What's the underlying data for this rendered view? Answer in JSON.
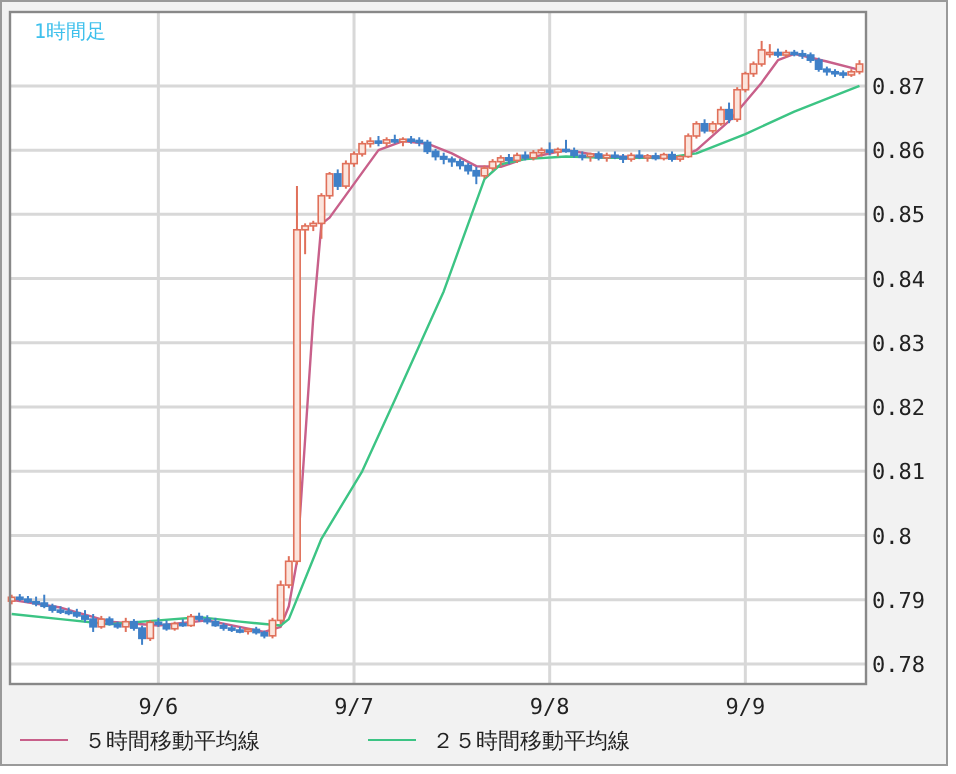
{
  "chart_data": {
    "type": "candlestick",
    "title": "1時間足",
    "x": [
      "--09-05T06:00",
      "--09-05T07:00",
      "--09-05T08:00",
      "--09-05T09:00",
      "--09-05T10:00",
      "--09-05T11:00",
      "--09-05T12:00",
      "--09-05T13:00",
      "--09-05T14:00",
      "--09-05T15:00",
      "--09-05T16:00",
      "--09-05T17:00",
      "--09-05T18:00",
      "--09-05T19:00",
      "--09-05T20:00",
      "--09-05T21:00",
      "--09-05T22:00",
      "--09-05T23:00",
      "--09-06T00:00",
      "--09-06T01:00",
      "--09-06T02:00",
      "--09-06T03:00",
      "--09-06T04:00",
      "--09-06T05:00",
      "--09-06T06:00",
      "--09-06T07:00",
      "--09-06T08:00",
      "--09-06T09:00",
      "--09-06T10:00",
      "--09-06T11:00",
      "--09-06T12:00",
      "--09-06T13:00",
      "--09-06T14:00",
      "--09-06T15:00",
      "--09-06T16:00",
      "--09-06T17:00",
      "--09-06T18:00",
      "--09-06T19:00",
      "--09-06T20:00",
      "--09-06T21:00",
      "--09-06T22:00",
      "--09-06T23:00",
      "--09-07T00:00",
      "--09-07T01:00",
      "--09-07T02:00",
      "--09-07T03:00",
      "--09-07T04:00",
      "--09-07T05:00",
      "--09-07T06:00",
      "--09-07T07:00",
      "--09-07T08:00",
      "--09-07T09:00",
      "--09-07T10:00",
      "--09-07T11:00",
      "--09-07T12:00",
      "--09-07T13:00",
      "--09-07T14:00",
      "--09-07T15:00",
      "--09-07T16:00",
      "--09-07T17:00",
      "--09-07T18:00",
      "--09-07T19:00",
      "--09-07T20:00",
      "--09-07T21:00",
      "--09-07T22:00",
      "--09-07T23:00",
      "--09-08T00:00",
      "--09-08T01:00",
      "--09-08T02:00",
      "--09-08T03:00",
      "--09-08T04:00",
      "--09-08T05:00",
      "--09-08T06:00",
      "--09-08T07:00",
      "--09-08T08:00",
      "--09-08T09:00",
      "--09-08T10:00",
      "--09-08T11:00",
      "--09-08T12:00",
      "--09-08T13:00",
      "--09-08T14:00",
      "--09-08T15:00",
      "--09-08T16:00",
      "--09-08T17:00",
      "--09-08T18:00",
      "--09-08T19:00",
      "--09-08T20:00",
      "--09-08T21:00",
      "--09-08T22:00",
      "--09-08T23:00",
      "--09-09T00:00",
      "--09-09T01:00",
      "--09-09T02:00",
      "--09-09T03:00",
      "--09-09T04:00",
      "--09-09T05:00",
      "--09-09T06:00",
      "--09-09T07:00",
      "--09-09T08:00",
      "--09-09T09:00",
      "--09-09T10:00",
      "--09-09T11:00",
      "--09-09T12:00",
      "--09-09T13:00",
      "--09-09T14:00"
    ],
    "ohlc": [
      [
        0.7898,
        0.7908,
        0.7893,
        0.7904
      ],
      [
        0.7904,
        0.7909,
        0.7898,
        0.7901
      ],
      [
        0.7901,
        0.7906,
        0.7895,
        0.7897
      ],
      [
        0.7897,
        0.7905,
        0.789,
        0.7895
      ],
      [
        0.7895,
        0.7908,
        0.7887,
        0.789
      ],
      [
        0.789,
        0.7894,
        0.788,
        0.7884
      ],
      [
        0.7884,
        0.789,
        0.7878,
        0.7882
      ],
      [
        0.7882,
        0.7888,
        0.7876,
        0.788
      ],
      [
        0.788,
        0.7886,
        0.7872,
        0.7875
      ],
      [
        0.7875,
        0.7884,
        0.7865,
        0.787
      ],
      [
        0.787,
        0.7878,
        0.785,
        0.7858
      ],
      [
        0.7858,
        0.7875,
        0.7855,
        0.787
      ],
      [
        0.787,
        0.7874,
        0.786,
        0.7862
      ],
      [
        0.7862,
        0.7866,
        0.7855,
        0.7858
      ],
      [
        0.7858,
        0.7872,
        0.785,
        0.7866
      ],
      [
        0.7866,
        0.787,
        0.7852,
        0.7856
      ],
      [
        0.7856,
        0.786,
        0.783,
        0.784
      ],
      [
        0.784,
        0.7868,
        0.7836,
        0.7865
      ],
      [
        0.7865,
        0.7872,
        0.7858,
        0.7862
      ],
      [
        0.7862,
        0.7868,
        0.7852,
        0.7855
      ],
      [
        0.7855,
        0.7866,
        0.7852,
        0.7863
      ],
      [
        0.7863,
        0.787,
        0.7858,
        0.786
      ],
      [
        0.786,
        0.7878,
        0.7858,
        0.7874
      ],
      [
        0.7874,
        0.788,
        0.7866,
        0.787
      ],
      [
        0.787,
        0.7876,
        0.7862,
        0.7866
      ],
      [
        0.7866,
        0.7872,
        0.7858,
        0.786
      ],
      [
        0.786,
        0.7864,
        0.7852,
        0.7856
      ],
      [
        0.7856,
        0.786,
        0.785,
        0.7853
      ],
      [
        0.7853,
        0.7858,
        0.7848,
        0.7851
      ],
      [
        0.7851,
        0.7856,
        0.7846,
        0.7854
      ],
      [
        0.7854,
        0.7858,
        0.7846,
        0.7849
      ],
      [
        0.7849,
        0.7852,
        0.784,
        0.7844
      ],
      [
        0.7844,
        0.7872,
        0.784,
        0.7868
      ],
      [
        0.7868,
        0.793,
        0.7862,
        0.7923
      ],
      [
        0.7923,
        0.7968,
        0.7918,
        0.796
      ],
      [
        0.796,
        0.8544,
        0.7955,
        0.8476
      ],
      [
        0.8476,
        0.8486,
        0.8438,
        0.8482
      ],
      [
        0.8482,
        0.849,
        0.8474,
        0.8486
      ],
      [
        0.8486,
        0.8533,
        0.8462,
        0.8529
      ],
      [
        0.8529,
        0.8566,
        0.8524,
        0.8563
      ],
      [
        0.8563,
        0.857,
        0.8538,
        0.8544
      ],
      [
        0.8544,
        0.8584,
        0.854,
        0.8579
      ],
      [
        0.8579,
        0.8598,
        0.8574,
        0.8594
      ],
      [
        0.8594,
        0.8614,
        0.859,
        0.861
      ],
      [
        0.861,
        0.862,
        0.8604,
        0.8614
      ],
      [
        0.8614,
        0.8622,
        0.8606,
        0.8611
      ],
      [
        0.8611,
        0.862,
        0.8605,
        0.8616
      ],
      [
        0.8616,
        0.8624,
        0.861,
        0.8613
      ],
      [
        0.8613,
        0.862,
        0.8606,
        0.8617
      ],
      [
        0.8617,
        0.8622,
        0.861,
        0.8615
      ],
      [
        0.8615,
        0.862,
        0.8606,
        0.8612
      ],
      [
        0.8612,
        0.8616,
        0.8594,
        0.8598
      ],
      [
        0.8598,
        0.8602,
        0.8584,
        0.859
      ],
      [
        0.859,
        0.8596,
        0.8578,
        0.8586
      ],
      [
        0.8586,
        0.859,
        0.8574,
        0.8582
      ],
      [
        0.8582,
        0.8586,
        0.857,
        0.8576
      ],
      [
        0.8576,
        0.858,
        0.8562,
        0.8568
      ],
      [
        0.8568,
        0.8574,
        0.8547,
        0.856
      ],
      [
        0.856,
        0.8576,
        0.8556,
        0.8572
      ],
      [
        0.8572,
        0.8586,
        0.8568,
        0.8582
      ],
      [
        0.8582,
        0.8592,
        0.8576,
        0.8588
      ],
      [
        0.8588,
        0.8594,
        0.8578,
        0.8584
      ],
      [
        0.8584,
        0.8596,
        0.858,
        0.8592
      ],
      [
        0.8592,
        0.8598,
        0.8584,
        0.8588
      ],
      [
        0.8588,
        0.86,
        0.8584,
        0.8596
      ],
      [
        0.8596,
        0.8604,
        0.859,
        0.86
      ],
      [
        0.86,
        0.8612,
        0.8592,
        0.8597
      ],
      [
        0.8597,
        0.8604,
        0.859,
        0.8601
      ],
      [
        0.8601,
        0.8616,
        0.8596,
        0.8599
      ],
      [
        0.8599,
        0.8604,
        0.8588,
        0.8592
      ],
      [
        0.8592,
        0.8598,
        0.8584,
        0.859
      ],
      [
        0.859,
        0.8596,
        0.8582,
        0.8594
      ],
      [
        0.8594,
        0.8598,
        0.8584,
        0.8588
      ],
      [
        0.8588,
        0.8596,
        0.8582,
        0.8592
      ],
      [
        0.8592,
        0.8598,
        0.8586,
        0.859
      ],
      [
        0.859,
        0.8594,
        0.858,
        0.8586
      ],
      [
        0.8586,
        0.8596,
        0.8582,
        0.8592
      ],
      [
        0.8592,
        0.86,
        0.8586,
        0.8589
      ],
      [
        0.8589,
        0.8594,
        0.8582,
        0.8591
      ],
      [
        0.8591,
        0.8596,
        0.8584,
        0.8587
      ],
      [
        0.8587,
        0.8596,
        0.8584,
        0.8593
      ],
      [
        0.8593,
        0.8598,
        0.8582,
        0.8586
      ],
      [
        0.8586,
        0.8592,
        0.8582,
        0.859
      ],
      [
        0.859,
        0.8626,
        0.8588,
        0.8622
      ],
      [
        0.8622,
        0.8645,
        0.8618,
        0.8641
      ],
      [
        0.8641,
        0.8648,
        0.8626,
        0.863
      ],
      [
        0.863,
        0.8645,
        0.8626,
        0.8641
      ],
      [
        0.8641,
        0.8668,
        0.8638,
        0.8663
      ],
      [
        0.8663,
        0.8674,
        0.8642,
        0.8648
      ],
      [
        0.8648,
        0.8698,
        0.8644,
        0.8694
      ],
      [
        0.8694,
        0.8722,
        0.869,
        0.8719
      ],
      [
        0.8719,
        0.8738,
        0.8714,
        0.8734
      ],
      [
        0.8734,
        0.877,
        0.873,
        0.8756
      ],
      [
        0.875,
        0.8765,
        0.8744,
        0.8752
      ],
      [
        0.8752,
        0.8758,
        0.8744,
        0.8748
      ],
      [
        0.8748,
        0.8756,
        0.8744,
        0.8752
      ],
      [
        0.8752,
        0.8756,
        0.8746,
        0.875
      ],
      [
        0.875,
        0.8756,
        0.8742,
        0.8748
      ],
      [
        0.8748,
        0.8752,
        0.8736,
        0.874
      ],
      [
        0.874,
        0.8744,
        0.8722,
        0.8726
      ],
      [
        0.8726,
        0.873,
        0.8716,
        0.8722
      ],
      [
        0.8722,
        0.8726,
        0.8714,
        0.872
      ],
      [
        0.872,
        0.8724,
        0.8712,
        0.8717
      ],
      [
        0.8717,
        0.8726,
        0.8714,
        0.8722
      ],
      [
        0.8722,
        0.874,
        0.8718,
        0.8734
      ]
    ],
    "series": [
      {
        "name": "５時間移動平均線",
        "type": "line",
        "color": "#c8608a",
        "x": [
          "--09-05T06:00",
          "--09-05T12:00",
          "--09-05T18:00",
          "--09-06T00:00",
          "--09-06T06:00",
          "--09-06T13:00",
          "--09-06T15:00",
          "--09-06T16:00",
          "--09-06T17:00",
          "--09-06T18:00",
          "--09-06T19:00",
          "--09-06T20:00",
          "--09-06T21:00",
          "--09-06T23:00",
          "--09-07T01:00",
          "--09-07T03:00",
          "--09-07T06:00",
          "--09-07T09:00",
          "--09-07T12:00",
          "--09-07T15:00",
          "--09-07T18:00",
          "--09-07T21:00",
          "--09-08T02:00",
          "--09-08T07:00",
          "--09-08T16:00",
          "--09-08T18:00",
          "--09-08T22:00",
          "--09-09T02:00",
          "--09-09T04:00",
          "--09-09T06:00",
          "--09-09T10:00",
          "--09-09T14:00"
        ],
        "values": [
          0.79,
          0.7888,
          0.7866,
          0.786,
          0.7868,
          0.785,
          0.7858,
          0.789,
          0.796,
          0.815,
          0.834,
          0.8485,
          0.8495,
          0.853,
          0.8565,
          0.86,
          0.8614,
          0.861,
          0.8595,
          0.8575,
          0.8574,
          0.8587,
          0.86,
          0.859,
          0.8589,
          0.86,
          0.8645,
          0.8705,
          0.874,
          0.875,
          0.8738,
          0.8725
        ]
      },
      {
        "name": "２５時間移動平均線",
        "type": "line",
        "color": "#3cc484",
        "x": [
          "--09-05T06:00",
          "--09-05T12:00",
          "--09-05T18:00",
          "--09-06T00:00",
          "--09-06T05:00",
          "--09-06T10:00",
          "--09-06T15:00",
          "--09-06T16:00",
          "--09-06T20:00",
          "--09-07T01:00",
          "--09-07T05:00",
          "--09-07T11:00",
          "--09-07T16:00",
          "--09-07T18:00",
          "--09-07T21:00",
          "--09-08T02:00",
          "--09-08T07:00",
          "--09-08T14:00",
          "--09-08T18:00",
          "--09-09T00:00",
          "--09-09T06:00",
          "--09-09T14:00"
        ],
        "values": [
          0.7878,
          0.787,
          0.7862,
          0.7868,
          0.7873,
          0.7866,
          0.786,
          0.787,
          0.7995,
          0.81,
          0.8211,
          0.838,
          0.8555,
          0.8578,
          0.8586,
          0.859,
          0.8588,
          0.8588,
          0.8595,
          0.8625,
          0.866,
          0.87
        ]
      }
    ],
    "xlim": [
      "--09-05T05:48",
      "--09-09T14:48"
    ],
    "ylim": [
      0.7769,
      0.8815
    ],
    "xticks": [
      {
        "value": "--09-06",
        "label": "9/6"
      },
      {
        "value": "--09-07",
        "label": "9/7"
      },
      {
        "value": "--09-08",
        "label": "9/8"
      },
      {
        "value": "--09-09",
        "label": "9/9"
      }
    ],
    "yticks": [
      0.78,
      0.79,
      0.8,
      0.81,
      0.82,
      0.83,
      0.84,
      0.85,
      0.86,
      0.87
    ],
    "grid": true,
    "legend": "bottom"
  }
}
